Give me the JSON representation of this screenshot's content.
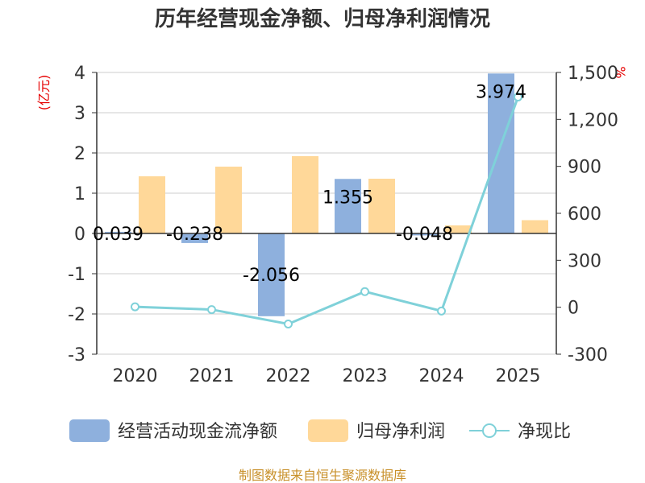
{
  "title": "历年经营现金净额、归母净利润情况",
  "footer": "制图数据来自恒生聚源数据库",
  "colors": {
    "cash": "#8eb0dd",
    "profit": "#ffd899",
    "ratio": "#7fd1d9",
    "unit": "#e60000",
    "footer": "#c8902a",
    "axis": "#333333",
    "grid": "#cccccc"
  },
  "chart_data": {
    "type": "bar+line",
    "categories": [
      "2020",
      "2021",
      "2022",
      "2023",
      "2024",
      "2025"
    ],
    "left_axis": {
      "unit": "(亿元)",
      "min": -3,
      "max": 4,
      "ticks": [
        "4",
        "3",
        "2",
        "1",
        "0",
        "-1",
        "-2",
        "-3"
      ]
    },
    "right_axis": {
      "unit": "%",
      "min": -300,
      "max": 1500,
      "ticks": [
        "1,500",
        "1,200",
        "900",
        "600",
        "300",
        "0",
        "-300"
      ]
    },
    "series": [
      {
        "name": "经营活动现金流净额",
        "kind": "bar",
        "axis": "left",
        "values": [
          0.039,
          -0.238,
          -2.056,
          1.355,
          -0.048,
          3.974
        ],
        "labels": [
          "0.039",
          "-0.238",
          "-2.056",
          "1.355",
          "-0.048",
          "3.974"
        ]
      },
      {
        "name": "归母净利润",
        "kind": "bar",
        "axis": "left",
        "values": [
          1.42,
          1.66,
          1.92,
          1.36,
          0.2,
          0.33
        ]
      },
      {
        "name": "净现比",
        "kind": "line",
        "axis": "right",
        "values": [
          3,
          -15,
          -107,
          100,
          -24,
          1343
        ]
      }
    ]
  }
}
